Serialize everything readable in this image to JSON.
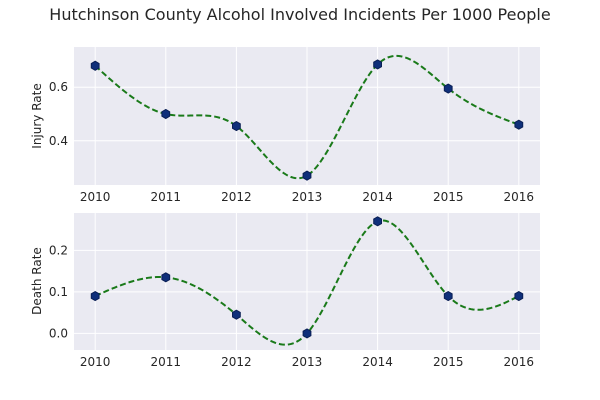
{
  "chart_data": {
    "title": "Hutchinson County Alcohol Involved Incidents Per 1000 People",
    "panels": [
      {
        "type": "line",
        "ylabel": "Injury Rate",
        "xlabel": "",
        "x": [
          2010,
          2011,
          2012,
          2013,
          2014,
          2015,
          2016
        ],
        "y": [
          0.68,
          0.5,
          0.455,
          0.27,
          0.685,
          0.595,
          0.46
        ],
        "xticks": [
          "2010",
          "2011",
          "2012",
          "2013",
          "2014",
          "2015",
          "2016"
        ],
        "yticks": [
          0.4,
          0.6
        ],
        "yticklabels": [
          "0.4",
          "0.6"
        ],
        "xlim": [
          2009.7,
          2016.3
        ],
        "ylim": [
          0.235,
          0.75
        ],
        "grid": true,
        "markers": true,
        "smoothed_fit": true
      },
      {
        "type": "line",
        "ylabel": "Death Rate",
        "xlabel": "",
        "x": [
          2010,
          2011,
          2012,
          2013,
          2014,
          2015,
          2016
        ],
        "y": [
          0.09,
          0.135,
          0.045,
          0.0,
          0.27,
          0.09,
          0.09
        ],
        "xticks": [
          "2010",
          "2011",
          "2012",
          "2013",
          "2014",
          "2015",
          "2016"
        ],
        "yticks": [
          0.0,
          0.1,
          0.2
        ],
        "yticklabels": [
          "0.0",
          "0.1",
          "0.2"
        ],
        "xlim": [
          2009.7,
          2016.3
        ],
        "ylim": [
          -0.04,
          0.29
        ],
        "grid": true,
        "markers": true,
        "smoothed_fit": true
      }
    ],
    "colors": {
      "panel_background": "#eaeaf2",
      "grid": "#ffffff",
      "curve": "#1a7a1a",
      "marker": "#0f2f7a"
    }
  }
}
